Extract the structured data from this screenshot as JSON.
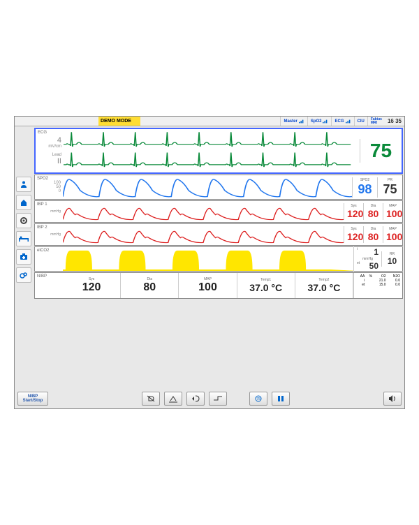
{
  "topbar": {
    "demo_mode": "DEMO MODE",
    "chips": [
      {
        "label": "Master"
      },
      {
        "label": "SpO2"
      },
      {
        "label": "ECG"
      },
      {
        "label": "CIU"
      },
      {
        "label": "Fabius\nMRI"
      }
    ],
    "clock": "16 35"
  },
  "sidebar_icons": [
    "person-icon",
    "home-icon",
    "gear-icon",
    "bed-icon",
    "kit-icon",
    "oxygen-icon"
  ],
  "ecg": {
    "title": "ECG",
    "mv": "4",
    "mv_unit": "mV/cm",
    "lead_lbl": "Lead",
    "lead": "II",
    "hr": "75",
    "color": "#0a8a3a",
    "cycles": 9
  },
  "spo2": {
    "title": "SPO2",
    "scale": [
      "100",
      "50",
      "0"
    ],
    "val_label": "SPO2",
    "val": "98",
    "pr_label": "PR",
    "pr": "75",
    "color": "#2277ee",
    "cycles": 8
  },
  "ibp1": {
    "title": "IBP 1",
    "scale": [
      "200",
      "150",
      "100",
      "50",
      "0"
    ],
    "unit": "mmHg",
    "sys_l": "Sys",
    "sys": "120",
    "dia_l": "Dia",
    "dia": "80",
    "map_l": "MAP",
    "map": "100",
    "color": "#dd2222",
    "cycles": 8
  },
  "ibp2": {
    "title": "IBP 2",
    "scale": [
      "200",
      "150",
      "100",
      "50",
      "0"
    ],
    "unit": "mmHg",
    "sys_l": "Sys",
    "sys": "120",
    "dia_l": "Dia",
    "dia": "80",
    "map_l": "MAP",
    "map": "100",
    "color": "#dd2222",
    "cycles": 8
  },
  "etco2": {
    "title": "etCO2",
    "scale": [
      "80",
      "60",
      "40",
      "20",
      "0"
    ],
    "i_l": "i",
    "i": "1",
    "unit": "mmHg",
    "et_l": "et",
    "et": "50",
    "rr_l": "RR",
    "rr": "10",
    "color": "#ffe600",
    "cycles": 5
  },
  "nibp": {
    "title": "NIBP",
    "sys_l": "Sys",
    "sys": "120",
    "dia_l": "Dia",
    "dia": "80",
    "map_l": "MAP",
    "map": "100",
    "t1_l": "Temp1",
    "t1": "37.0 °C",
    "t2_l": "Temp2",
    "t2": "37.0 °C"
  },
  "gas": {
    "cols": [
      "AA",
      "%",
      "O2",
      "N2O"
    ],
    "i_l": "i",
    "i_pct": "21.0",
    "i_n2o": "0.0",
    "et_l": "et",
    "et_pct": "15.0",
    "et_n2o": "0.0"
  },
  "toolbar": {
    "nibp_btn": "NIBP\nStart/Stop"
  },
  "colors": {
    "panel_border": "#888",
    "accent": "#4466ff",
    "bg": "#e8e8e8"
  }
}
